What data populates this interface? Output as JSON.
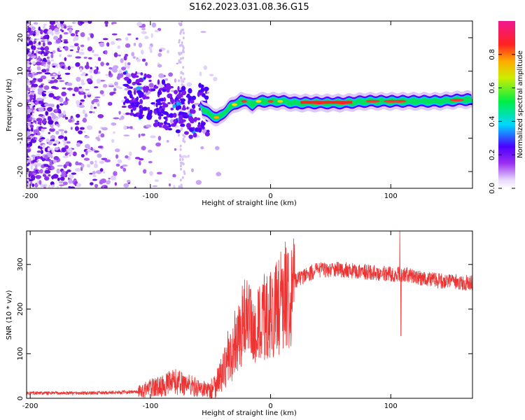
{
  "title": "S162.2023.031.08.36.G15",
  "chart_data": [
    {
      "type": "heatmap",
      "name": "spectrogram",
      "xlabel": "Height of straight line (km)",
      "ylabel": "Frequency (Hz)",
      "xlim": [
        -203,
        168
      ],
      "ylim": [
        -25,
        25
      ],
      "xticks": [
        -200,
        -100,
        0,
        100
      ],
      "yticks": [
        -20,
        -10,
        0,
        10,
        20
      ],
      "colorbar": {
        "label": "Normalized spectral amplitude",
        "range": [
          0,
          1
        ],
        "ticks": [
          "0.0",
          "0.2",
          "0.4",
          "0.6",
          "0.8"
        ],
        "tick_values": [
          0.0,
          0.2,
          0.4,
          0.6,
          0.8
        ]
      },
      "ridge": {
        "x": [
          -58,
          -50,
          -44,
          -40,
          -35,
          -30,
          -25,
          -20,
          -15,
          -10,
          -5,
          0,
          10,
          20,
          40,
          60,
          80,
          100,
          120,
          140,
          160,
          168
        ],
        "y": [
          -1,
          -3,
          -4,
          -3,
          -1,
          0,
          1,
          1,
          0,
          1,
          1,
          1,
          1,
          0.5,
          0.5,
          0.5,
          1,
          1,
          1,
          1,
          1.5,
          1.5
        ]
      }
    },
    {
      "type": "line",
      "name": "snr",
      "xlabel": "Height of straight line (km)",
      "ylabel": "SNR (10 * v/v)",
      "xlim": [
        -203,
        168
      ],
      "ylim": [
        0,
        375
      ],
      "xticks": [
        -200,
        -100,
        0,
        100
      ],
      "yticks": [
        0,
        100,
        200,
        300
      ],
      "color": "#ee3333",
      "envelope": {
        "x": [
          -203,
          -150,
          -110,
          -100,
          -90,
          -80,
          -70,
          -60,
          -50,
          -40,
          -30,
          -25,
          -20,
          -15,
          -10,
          -5,
          0,
          5,
          10,
          15,
          20,
          30,
          40,
          60,
          80,
          100,
          107,
          110,
          120,
          140,
          168
        ],
        "y": [
          12,
          12,
          15,
          25,
          30,
          40,
          35,
          25,
          20,
          60,
          120,
          160,
          200,
          150,
          170,
          190,
          200,
          210,
          240,
          250,
          265,
          280,
          290,
          290,
          285,
          280,
          280,
          280,
          275,
          265,
          260
        ]
      },
      "spikes": [
        {
          "x": 107.5,
          "y": 375
        },
        {
          "x": 108.5,
          "y": 140
        }
      ]
    }
  ]
}
